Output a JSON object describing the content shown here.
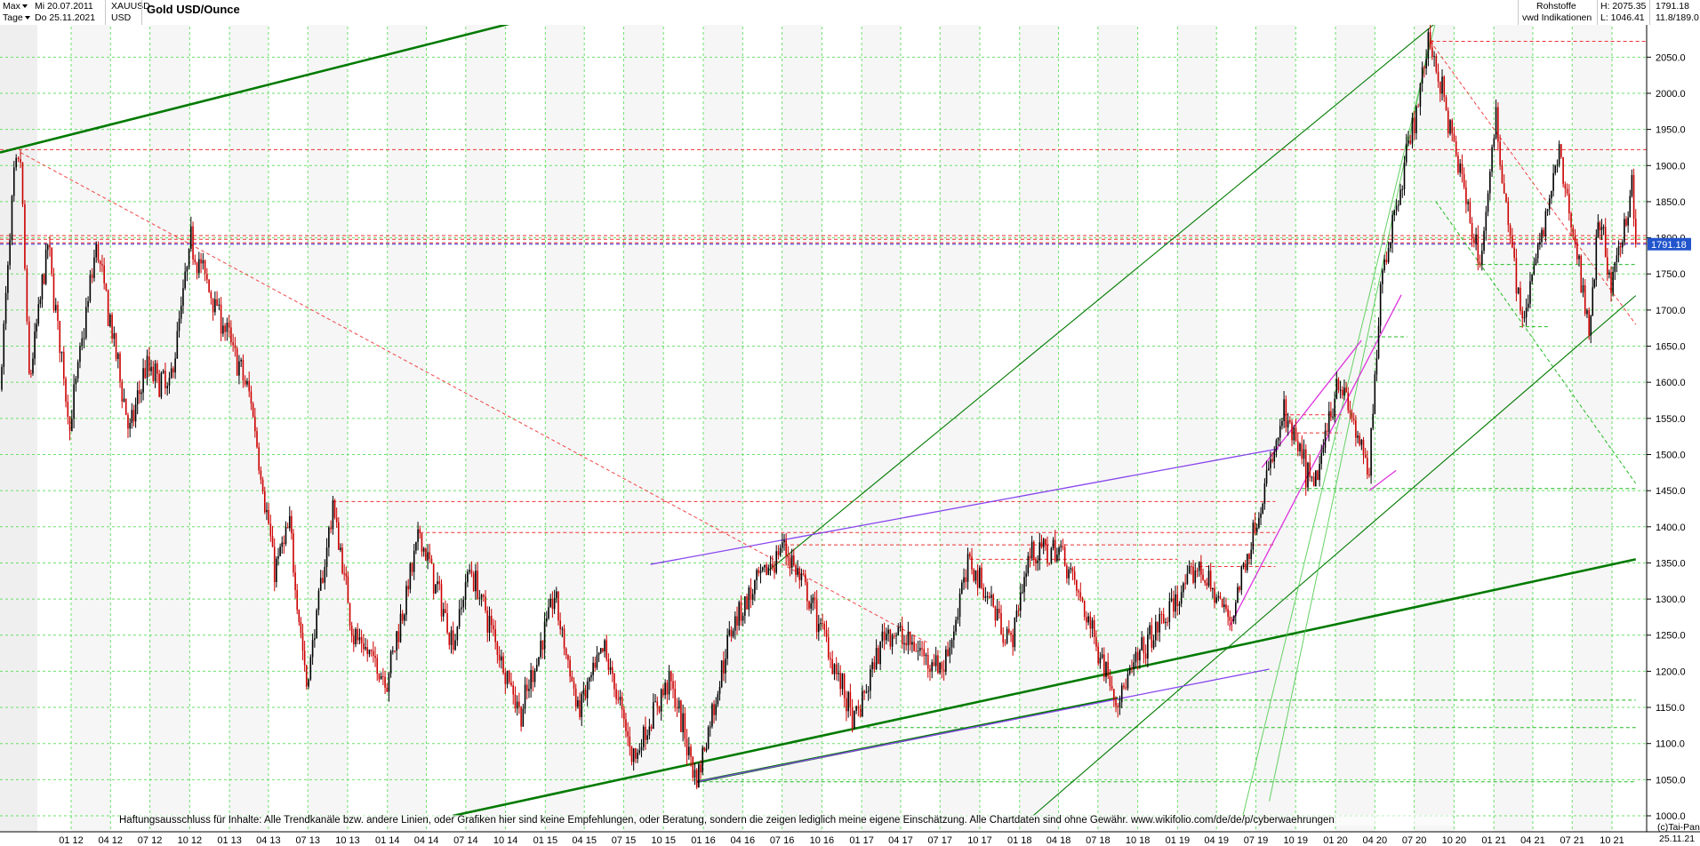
{
  "header": {
    "range_label": "Max",
    "interval_label": "Tage",
    "date_from": "Mi 20.07.2011",
    "date_to": "Do 25.11.2021",
    "symbol": "XAUUSD",
    "currency": "USD",
    "title": "Gold USD/Ounce",
    "category": "Rohstoffe",
    "source": "vwd Indikationen",
    "high_label": "H: 2075.35",
    "low_label": "L: 1046.41",
    "last_value": "1791.18",
    "volume_label": "11.8/189.0"
  },
  "footer": {
    "disclaimer": "Haftungsausschluss für Inhalte: Alle Trendkanäle bzw. andere Linien, oder Grafiken hier sind keine Empfehlungen, oder Beratung, sondern die zeigen lediglich meine eigene Einschätzung. Alle Chartdaten sind ohne Gewähr.  www.wikifolio.com/de/de/p/cyberwaehrungen",
    "copyright": "(c)Tai-Pan",
    "last_date": "25.11.21"
  },
  "colors": {
    "grid": "#55dd55",
    "up_candle": "#000000",
    "down_candle": "#cc0000",
    "trend_green": "#007a00",
    "trend_purple": "#8844ee",
    "trend_magenta": "#dd33dd",
    "level_red": "#ee3333",
    "level_blue": "#3333dd",
    "price_badge": "#2255cc"
  },
  "chart_data": {
    "type": "candlestick",
    "title": "Gold USD/Ounce",
    "ylim": [
      1000,
      2080
    ],
    "y_ticks": [
      1000,
      1050,
      1100,
      1150,
      1200,
      1250,
      1300,
      1350,
      1400,
      1450,
      1500,
      1550,
      1600,
      1650,
      1700,
      1750,
      1800,
      1850,
      1900,
      1950,
      2000,
      2050
    ],
    "x_ticks": [
      "01 12",
      "04 12",
      "07 12",
      "10 12",
      "01 13",
      "04 13",
      "07 13",
      "10 13",
      "01 14",
      "04 14",
      "07 14",
      "10 14",
      "01 15",
      "04 15",
      "07 15",
      "10 15",
      "01 16",
      "04 16",
      "07 16",
      "10 16",
      "01 17",
      "04 17",
      "07 17",
      "10 17",
      "01 18",
      "04 18",
      "07 18",
      "10 18",
      "01 19",
      "04 19",
      "07 19",
      "10 19",
      "01 20",
      "04 20",
      "07 20",
      "10 20",
      "01 21",
      "04 21",
      "07 21",
      "10 21"
    ],
    "last_price": 1791.18,
    "high": 2075.35,
    "low": 1046.41,
    "price_path": [
      [
        "2011-07-20",
        1590
      ],
      [
        "2011-08-22",
        1880
      ],
      [
        "2011-09-06",
        1910
      ],
      [
        "2011-09-26",
        1600
      ],
      [
        "2011-11-08",
        1790
      ],
      [
        "2011-12-29",
        1540
      ],
      [
        "2012-02-28",
        1790
      ],
      [
        "2012-05-16",
        1530
      ],
      [
        "2012-06-20",
        1620
      ],
      [
        "2012-08-15",
        1590
      ],
      [
        "2012-10-04",
        1795
      ],
      [
        "2012-12-31",
        1660
      ],
      [
        "2013-02-20",
        1575
      ],
      [
        "2013-04-15",
        1340
      ],
      [
        "2013-05-20",
        1400
      ],
      [
        "2013-06-28",
        1180
      ],
      [
        "2013-08-28",
        1430
      ],
      [
        "2013-10-15",
        1250
      ],
      [
        "2013-12-31",
        1190
      ],
      [
        "2014-03-17",
        1390
      ],
      [
        "2014-06-02",
        1240
      ],
      [
        "2014-07-10",
        1345
      ],
      [
        "2014-11-06",
        1140
      ],
      [
        "2015-01-22",
        1305
      ],
      [
        "2015-03-17",
        1145
      ],
      [
        "2015-05-18",
        1230
      ],
      [
        "2015-07-24",
        1080
      ],
      [
        "2015-10-14",
        1190
      ],
      [
        "2015-12-17",
        1050
      ],
      [
        "2016-03-10",
        1270
      ],
      [
        "2016-07-06",
        1375
      ],
      [
        "2016-10-07",
        1250
      ],
      [
        "2016-12-15",
        1125
      ],
      [
        "2017-02-27",
        1260
      ],
      [
        "2017-07-10",
        1205
      ],
      [
        "2017-09-08",
        1355
      ],
      [
        "2017-12-12",
        1240
      ],
      [
        "2018-01-25",
        1365
      ],
      [
        "2018-04-11",
        1365
      ],
      [
        "2018-08-16",
        1160
      ],
      [
        "2018-10-15",
        1230
      ],
      [
        "2019-02-20",
        1345
      ],
      [
        "2019-05-02",
        1270
      ],
      [
        "2019-09-04",
        1555
      ],
      [
        "2019-11-12",
        1450
      ],
      [
        "2020-01-08",
        1610
      ],
      [
        "2020-03-19",
        1470
      ],
      [
        "2020-04-14",
        1740
      ],
      [
        "2020-08-07",
        2075
      ],
      [
        "2020-11-30",
        1765
      ],
      [
        "2021-01-06",
        1960
      ],
      [
        "2021-03-08",
        1680
      ],
      [
        "2021-06-01",
        1915
      ],
      [
        "2021-08-09",
        1680
      ],
      [
        "2021-09-03",
        1830
      ],
      [
        "2021-09-29",
        1725
      ],
      [
        "2021-11-16",
        1875
      ],
      [
        "2021-11-25",
        1791
      ]
    ],
    "horizontal_levels": [
      {
        "price": 2072,
        "color": "red",
        "from": "2020-08-07"
      },
      {
        "price": 1922,
        "color": "red"
      },
      {
        "price": 1803,
        "color": "red"
      },
      {
        "price": 1798,
        "color": "red"
      },
      {
        "price": 1793,
        "color": "red"
      },
      {
        "price": 1791.18,
        "color": "blue"
      },
      {
        "price": 1435,
        "color": "red",
        "from": "2013-08-28",
        "to": "2019-08-15"
      },
      {
        "price": 1392,
        "color": "red",
        "from": "2014-03-17",
        "to": "2019-08-15"
      },
      {
        "price": 1375,
        "color": "red",
        "from": "2016-07-06",
        "to": "2019-08-15"
      },
      {
        "price": 1355,
        "color": "red",
        "from": "2017-09-08",
        "to": "2019-01-01"
      },
      {
        "price": 1345,
        "color": "red",
        "from": "2019-02-20",
        "to": "2019-08-15"
      },
      {
        "price": 1555,
        "color": "red",
        "from": "2019-09-04",
        "to": "2020-01-15"
      },
      {
        "price": 1530,
        "color": "red",
        "from": "2019-09-20",
        "to": "2020-01-15"
      },
      {
        "price": 1763,
        "color": "green",
        "from": "2020-11-20",
        "to": "2021-11-25"
      },
      {
        "price": 1677,
        "color": "green",
        "from": "2021-03-01",
        "to": "2021-05-10"
      },
      {
        "price": 1663,
        "color": "green",
        "from": "2020-03-19",
        "to": "2020-06-15"
      },
      {
        "price": 1453,
        "color": "green",
        "from": "2019-10-01",
        "to": "2021-11-25"
      },
      {
        "price": 1160,
        "color": "green",
        "from": "2018-08-16",
        "to": "2021-11-25"
      },
      {
        "price": 1122,
        "color": "green",
        "from": "2016-12-15",
        "to": "2021-11-25"
      },
      {
        "price": 1047,
        "color": "green",
        "from": "2015-12-17",
        "to": "2021-11-25"
      }
    ],
    "trend_lines": [
      {
        "color": "green-thick",
        "points": [
          [
            "2011-07-20",
            1918
          ],
          [
            "2014-10-15",
            2097
          ]
        ]
      },
      {
        "color": "green-thick",
        "points": [
          [
            "2014-06-01",
            1000
          ],
          [
            "2021-11-25",
            1355
          ]
        ]
      },
      {
        "color": "green-thick",
        "points": [
          [
            "2015-12-17",
            1047
          ],
          [
            "2018-08-16",
            1163
          ]
        ]
      },
      {
        "color": "green",
        "points": [
          [
            "2016-06-01",
            1340
          ],
          [
            "2020-08-25",
            2100
          ]
        ]
      },
      {
        "color": "green",
        "points": [
          [
            "2018-02-01",
            1000
          ],
          [
            "2021-11-25",
            1720
          ]
        ]
      },
      {
        "color": "green-faint",
        "points": [
          [
            "2019-06-01",
            1000
          ],
          [
            "2020-08-20",
            2100
          ]
        ]
      },
      {
        "color": "green-faint",
        "points": [
          [
            "2019-08-01",
            1020
          ],
          [
            "2020-08-07",
            2075
          ]
        ]
      },
      {
        "color": "purple",
        "points": [
          [
            "2015-09-01",
            1348
          ],
          [
            "2019-08-22",
            1508
          ]
        ]
      },
      {
        "color": "purple",
        "points": [
          [
            "2015-12-17",
            1047
          ],
          [
            "2019-08-01",
            1203
          ]
        ]
      },
      {
        "color": "magenta",
        "points": [
          [
            "2019-05-01",
            1262
          ],
          [
            "2020-06-01",
            1721
          ]
        ]
      },
      {
        "color": "magenta",
        "points": [
          [
            "2019-07-15",
            1482
          ],
          [
            "2020-03-01",
            1658
          ]
        ]
      },
      {
        "color": "magenta",
        "points": [
          [
            "2020-03-19",
            1450
          ],
          [
            "2020-05-20",
            1478
          ]
        ]
      },
      {
        "color": "red-dash",
        "points": [
          [
            "2011-09-06",
            1918
          ],
          [
            "2017-06-01",
            1240
          ]
        ]
      },
      {
        "color": "red-dash",
        "points": [
          [
            "2020-08-07",
            2072
          ],
          [
            "2021-11-25",
            1680
          ]
        ]
      },
      {
        "color": "green-dash",
        "points": [
          [
            "2020-08-20",
            1850
          ],
          [
            "2021-11-25",
            1460
          ]
        ]
      }
    ]
  }
}
